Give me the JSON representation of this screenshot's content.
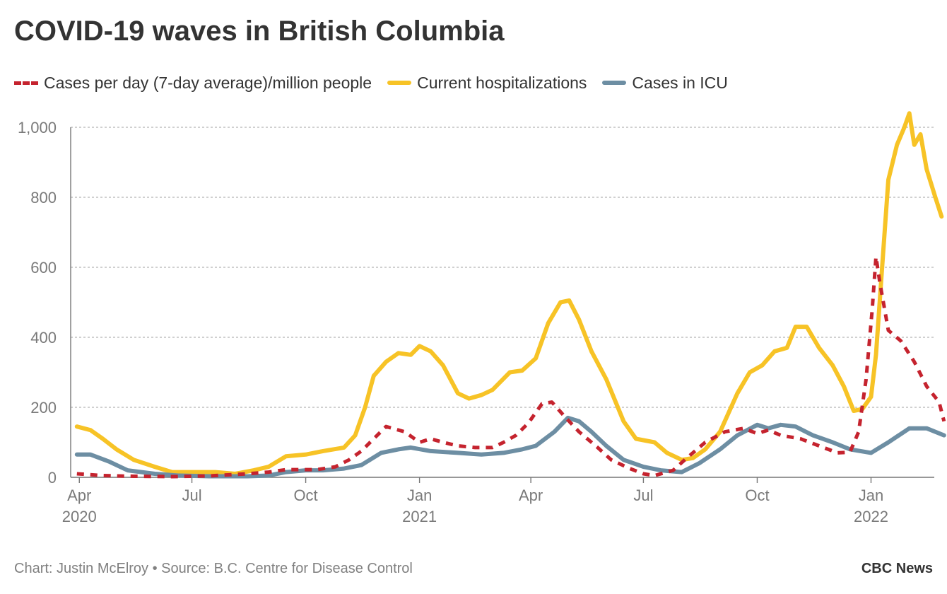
{
  "title": "COVID-19 waves in British Columbia",
  "footer": {
    "source": "Chart: Justin McElroy • Source: B.C. Centre for Disease Control",
    "brand": "CBC News"
  },
  "chart_data": {
    "type": "line",
    "ylim": [
      0,
      1050
    ],
    "y_ticks": [
      {
        "value": 0,
        "label": "0"
      },
      {
        "value": 200,
        "label": "200"
      },
      {
        "value": 400,
        "label": "400"
      },
      {
        "value": 600,
        "label": "600"
      },
      {
        "value": 800,
        "label": "800"
      },
      {
        "value": 1000,
        "label": "1,000"
      }
    ],
    "x_range": [
      "2020-03-25",
      "2022-02-20"
    ],
    "x_ticks": [
      {
        "date": "2020-04-01",
        "label": "Apr",
        "year": "2020"
      },
      {
        "date": "2020-07-01",
        "label": "Jul",
        "year": ""
      },
      {
        "date": "2020-10-01",
        "label": "Oct",
        "year": ""
      },
      {
        "date": "2021-01-01",
        "label": "Jan",
        "year": "2021"
      },
      {
        "date": "2021-04-01",
        "label": "Apr",
        "year": ""
      },
      {
        "date": "2021-07-01",
        "label": "Jul",
        "year": ""
      },
      {
        "date": "2021-10-01",
        "label": "Oct",
        "year": ""
      },
      {
        "date": "2022-01-01",
        "label": "Jan",
        "year": "2022"
      }
    ],
    "grid": "horizontal-dashed",
    "legend_position": "top",
    "series": [
      {
        "name": "Cases per day (7-day average)/million people",
        "color": "#c5232e",
        "style": "dashed",
        "points": [
          [
            "2020-03-30",
            10
          ],
          [
            "2020-04-20",
            5
          ],
          [
            "2020-05-15",
            3
          ],
          [
            "2020-06-15",
            2
          ],
          [
            "2020-07-15",
            4
          ],
          [
            "2020-08-15",
            10
          ],
          [
            "2020-09-01",
            15
          ],
          [
            "2020-09-15",
            22
          ],
          [
            "2020-10-10",
            22
          ],
          [
            "2020-10-25",
            30
          ],
          [
            "2020-11-05",
            50
          ],
          [
            "2020-11-15",
            75
          ],
          [
            "2020-11-25",
            110
          ],
          [
            "2020-12-05",
            145
          ],
          [
            "2020-12-20",
            130
          ],
          [
            "2021-01-01",
            100
          ],
          [
            "2021-01-10",
            110
          ],
          [
            "2021-01-20",
            100
          ],
          [
            "2021-02-01",
            90
          ],
          [
            "2021-02-15",
            85
          ],
          [
            "2021-03-01",
            85
          ],
          [
            "2021-03-10",
            100
          ],
          [
            "2021-03-20",
            120
          ],
          [
            "2021-03-30",
            155
          ],
          [
            "2021-04-10",
            210
          ],
          [
            "2021-04-18",
            215
          ],
          [
            "2021-04-28",
            175
          ],
          [
            "2021-05-10",
            130
          ],
          [
            "2021-05-25",
            85
          ],
          [
            "2021-06-05",
            50
          ],
          [
            "2021-06-20",
            25
          ],
          [
            "2021-07-01",
            10
          ],
          [
            "2021-07-10",
            5
          ],
          [
            "2021-07-25",
            20
          ],
          [
            "2021-08-05",
            55
          ],
          [
            "2021-08-20",
            100
          ],
          [
            "2021-09-05",
            130
          ],
          [
            "2021-09-20",
            140
          ],
          [
            "2021-10-01",
            125
          ],
          [
            "2021-10-10",
            135
          ],
          [
            "2021-10-20",
            120
          ],
          [
            "2021-11-05",
            110
          ],
          [
            "2021-11-20",
            90
          ],
          [
            "2021-12-05",
            70
          ],
          [
            "2021-12-15",
            72
          ],
          [
            "2021-12-22",
            130
          ],
          [
            "2021-12-28",
            280
          ],
          [
            "2022-01-02",
            480
          ],
          [
            "2022-01-05",
            630
          ],
          [
            "2022-01-08",
            560
          ],
          [
            "2022-01-15",
            420
          ],
          [
            "2022-01-25",
            390
          ],
          [
            "2022-02-05",
            330
          ],
          [
            "2022-02-15",
            260
          ],
          [
            "2022-02-25",
            215
          ],
          [
            "2022-03-01",
            160
          ]
        ]
      },
      {
        "name": "Current hospitalizations",
        "color": "#f7c326",
        "style": "solid",
        "points": [
          [
            "2020-03-30",
            145
          ],
          [
            "2020-04-10",
            135
          ],
          [
            "2020-04-20",
            110
          ],
          [
            "2020-05-01",
            80
          ],
          [
            "2020-05-15",
            50
          ],
          [
            "2020-06-01",
            30
          ],
          [
            "2020-06-15",
            15
          ],
          [
            "2020-07-01",
            15
          ],
          [
            "2020-07-20",
            15
          ],
          [
            "2020-08-05",
            10
          ],
          [
            "2020-08-20",
            20
          ],
          [
            "2020-09-01",
            30
          ],
          [
            "2020-09-15",
            60
          ],
          [
            "2020-10-01",
            65
          ],
          [
            "2020-10-15",
            75
          ],
          [
            "2020-11-01",
            85
          ],
          [
            "2020-11-10",
            120
          ],
          [
            "2020-11-18",
            200
          ],
          [
            "2020-11-25",
            290
          ],
          [
            "2020-12-05",
            330
          ],
          [
            "2020-12-15",
            355
          ],
          [
            "2020-12-25",
            350
          ],
          [
            "2021-01-01",
            375
          ],
          [
            "2021-01-10",
            360
          ],
          [
            "2021-01-20",
            320
          ],
          [
            "2021-02-01",
            240
          ],
          [
            "2021-02-10",
            225
          ],
          [
            "2021-02-20",
            235
          ],
          [
            "2021-03-01",
            250
          ],
          [
            "2021-03-15",
            300
          ],
          [
            "2021-03-25",
            305
          ],
          [
            "2021-04-05",
            340
          ],
          [
            "2021-04-15",
            440
          ],
          [
            "2021-04-25",
            500
          ],
          [
            "2021-05-02",
            505
          ],
          [
            "2021-05-10",
            450
          ],
          [
            "2021-05-20",
            360
          ],
          [
            "2021-06-01",
            280
          ],
          [
            "2021-06-15",
            160
          ],
          [
            "2021-06-25",
            110
          ],
          [
            "2021-07-10",
            100
          ],
          [
            "2021-07-20",
            70
          ],
          [
            "2021-08-01",
            50
          ],
          [
            "2021-08-10",
            55
          ],
          [
            "2021-08-20",
            80
          ],
          [
            "2021-09-01",
            130
          ],
          [
            "2021-09-15",
            240
          ],
          [
            "2021-09-25",
            300
          ],
          [
            "2021-10-05",
            320
          ],
          [
            "2021-10-15",
            360
          ],
          [
            "2021-10-25",
            370
          ],
          [
            "2021-11-01",
            430
          ],
          [
            "2021-11-10",
            430
          ],
          [
            "2021-11-20",
            370
          ],
          [
            "2021-12-01",
            320
          ],
          [
            "2021-12-10",
            260
          ],
          [
            "2021-12-18",
            190
          ],
          [
            "2021-12-25",
            195
          ],
          [
            "2022-01-01",
            230
          ],
          [
            "2022-01-05",
            350
          ],
          [
            "2022-01-10",
            600
          ],
          [
            "2022-01-15",
            850
          ],
          [
            "2022-01-22",
            950
          ],
          [
            "2022-01-28",
            1000
          ],
          [
            "2022-02-01",
            1040
          ],
          [
            "2022-02-05",
            950
          ],
          [
            "2022-02-10",
            980
          ],
          [
            "2022-02-15",
            880
          ],
          [
            "2022-02-22",
            800
          ],
          [
            "2022-02-27",
            745
          ]
        ]
      },
      {
        "name": "Cases in ICU",
        "color": "#6d8ea3",
        "style": "solid",
        "points": [
          [
            "2020-03-30",
            65
          ],
          [
            "2020-04-10",
            65
          ],
          [
            "2020-04-25",
            45
          ],
          [
            "2020-05-10",
            20
          ],
          [
            "2020-06-01",
            10
          ],
          [
            "2020-06-20",
            5
          ],
          [
            "2020-07-15",
            3
          ],
          [
            "2020-08-15",
            3
          ],
          [
            "2020-09-01",
            5
          ],
          [
            "2020-09-15",
            15
          ],
          [
            "2020-10-01",
            20
          ],
          [
            "2020-10-15",
            20
          ],
          [
            "2020-11-01",
            25
          ],
          [
            "2020-11-15",
            35
          ],
          [
            "2020-12-01",
            70
          ],
          [
            "2020-12-15",
            80
          ],
          [
            "2020-12-25",
            85
          ],
          [
            "2021-01-10",
            75
          ],
          [
            "2021-02-01",
            70
          ],
          [
            "2021-02-20",
            65
          ],
          [
            "2021-03-10",
            70
          ],
          [
            "2021-03-25",
            80
          ],
          [
            "2021-04-05",
            90
          ],
          [
            "2021-04-20",
            130
          ],
          [
            "2021-05-01",
            170
          ],
          [
            "2021-05-10",
            160
          ],
          [
            "2021-05-20",
            130
          ],
          [
            "2021-06-01",
            90
          ],
          [
            "2021-06-15",
            50
          ],
          [
            "2021-07-01",
            30
          ],
          [
            "2021-07-15",
            20
          ],
          [
            "2021-08-01",
            15
          ],
          [
            "2021-08-15",
            40
          ],
          [
            "2021-09-01",
            80
          ],
          [
            "2021-09-15",
            120
          ],
          [
            "2021-10-01",
            150
          ],
          [
            "2021-10-10",
            140
          ],
          [
            "2021-10-20",
            150
          ],
          [
            "2021-11-01",
            145
          ],
          [
            "2021-11-15",
            120
          ],
          [
            "2021-12-01",
            100
          ],
          [
            "2021-12-15",
            80
          ],
          [
            "2022-01-01",
            70
          ],
          [
            "2022-01-15",
            100
          ],
          [
            "2022-02-01",
            140
          ],
          [
            "2022-02-15",
            140
          ],
          [
            "2022-03-01",
            120
          ]
        ]
      }
    ]
  }
}
